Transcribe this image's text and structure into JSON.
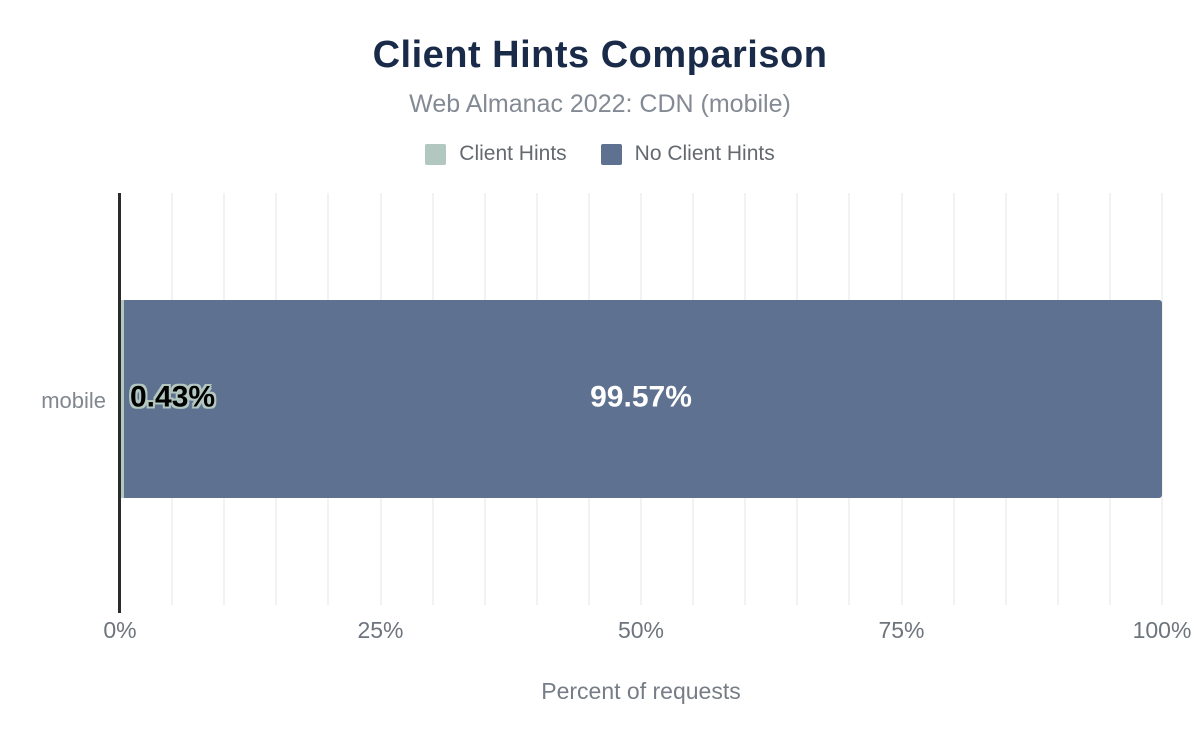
{
  "header": {
    "title": "Client Hints Comparison",
    "subtitle": "Web Almanac 2022: CDN (mobile)"
  },
  "legend": [
    {
      "label": "Client Hints",
      "color": "#b2c7bf"
    },
    {
      "label": "No Client Hints",
      "color": "#5f7190"
    }
  ],
  "colors": {
    "client_hints": "#b2c7bf",
    "no_client_hints": "#5f7190",
    "title": "#1a2b49",
    "axis_line": "#2b2b2b",
    "gridline": "#f2f2f2"
  },
  "chart_data": {
    "type": "bar",
    "orientation": "horizontal",
    "stacked": true,
    "title": "Client Hints Comparison",
    "subtitle": "Web Almanac 2022: CDN (mobile)",
    "categories": [
      "mobile"
    ],
    "series": [
      {
        "name": "Client Hints",
        "values": [
          0.43
        ],
        "color": "#b2c7bf",
        "data_label": "0.43%"
      },
      {
        "name": "No Client Hints",
        "values": [
          99.57
        ],
        "color": "#5f7190",
        "data_label": "99.57%"
      }
    ],
    "xlabel": "Percent of requests",
    "ylabel": "",
    "xlim": [
      0,
      100
    ],
    "x_ticks": [
      {
        "value": 0,
        "label": "0%"
      },
      {
        "value": 25,
        "label": "25%"
      },
      {
        "value": 50,
        "label": "50%"
      },
      {
        "value": 75,
        "label": "75%"
      },
      {
        "value": 100,
        "label": "100%"
      }
    ],
    "gridline_step": 5,
    "grid": true,
    "legend_position": "top"
  }
}
